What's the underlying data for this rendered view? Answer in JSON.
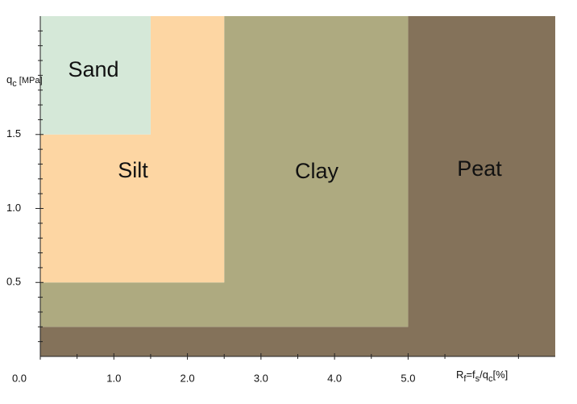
{
  "chart_data": {
    "type": "region",
    "regions": [
      {
        "name": "Peat",
        "color": "#84725a",
        "x": [
          0,
          7,
          7,
          5,
          5,
          0
        ],
        "y": [
          0,
          0,
          2.3,
          2.3,
          0.2,
          0.2
        ]
      },
      {
        "name": "Clay",
        "color": "#aeaa80",
        "x": [
          0,
          5,
          5,
          2.5,
          2.5,
          0
        ],
        "y": [
          0.2,
          0.2,
          2.3,
          2.3,
          0.5,
          0.5
        ]
      },
      {
        "name": "Silt",
        "color": "#fdd6a3",
        "x": [
          0,
          2.5,
          2.5,
          1.5,
          1.5,
          0
        ],
        "y": [
          0.5,
          0.5,
          2.3,
          2.3,
          1.5,
          1.5
        ]
      },
      {
        "name": "Sand",
        "color": "#d5e8d8",
        "x": [
          0,
          1.5,
          1.5,
          0
        ],
        "y": [
          1.5,
          1.5,
          2.3,
          2.3
        ]
      }
    ],
    "xlim": [
      0,
      7
    ],
    "ylim": [
      0,
      2.3
    ],
    "xticks": [
      {
        "value": 0,
        "label": "0.0"
      },
      {
        "value": 1,
        "label": "1.0"
      },
      {
        "value": 2,
        "label": "2.0"
      },
      {
        "value": 3,
        "label": "3.0"
      },
      {
        "value": 4,
        "label": "4.0"
      },
      {
        "value": 5,
        "label": "5.0"
      }
    ],
    "xminorticks": [
      0.5,
      1.5,
      2.5,
      3.5,
      4.5,
      5.5,
      6.5
    ],
    "yticks": [
      0.5,
      {
        "value": 1,
        "label": "1.0"
      },
      1.5
    ],
    "yminorticks": [
      0.1,
      0.2,
      0.3,
      0.4,
      0.6,
      0.7,
      0.8,
      0.9,
      1.1,
      1.2,
      1.3,
      1.4,
      1.6,
      1.7,
      1.8,
      1.9,
      2.0,
      2.1,
      2.2
    ],
    "ylabel": [
      {
        "text": "q"
      },
      {
        "text": "c",
        "sub": true
      },
      {
        "text": " [MPa]",
        "small": true
      }
    ],
    "xlabel": [
      {
        "text": "R"
      },
      {
        "text": "f",
        "sub": true
      },
      {
        "text": "=f"
      },
      {
        "text": "s",
        "sub": true
      },
      {
        "text": "/q"
      },
      {
        "text": "c",
        "sub": true
      },
      {
        "text": "[%]"
      }
    ]
  }
}
